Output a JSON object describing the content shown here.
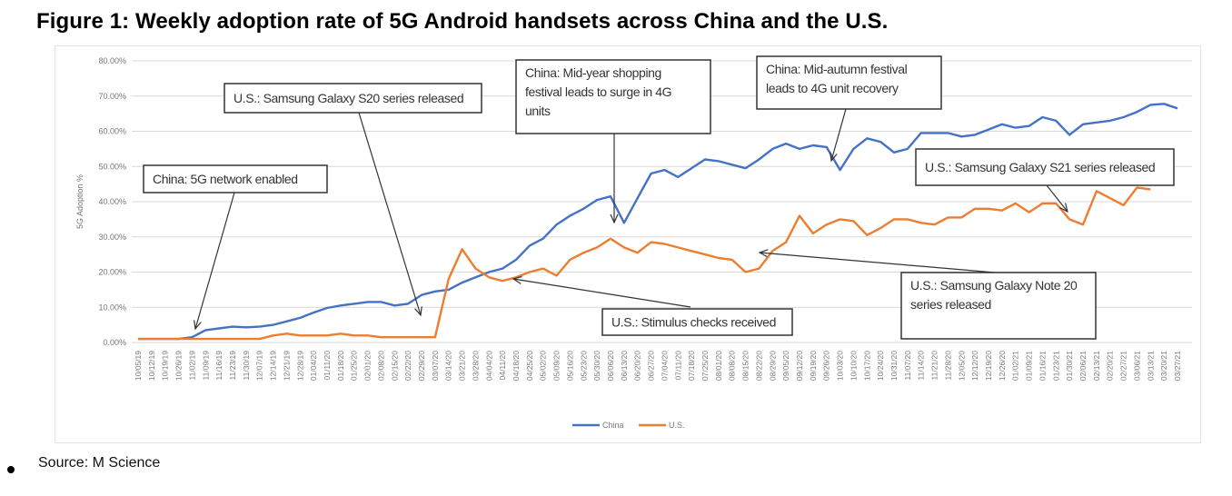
{
  "title": "Figure 1: Weekly  adoption rate of 5G Android handsets across China and the U.S.",
  "source": "Source: M Science",
  "chart_data": {
    "type": "line",
    "title": "Figure 1: Weekly  adoption rate of 5G Android handsets across China and the U.S.",
    "xlabel": "",
    "ylabel": "5G Adoption %",
    "ylim": [
      0,
      80
    ],
    "yticks": [
      "0.00%",
      "10.00%",
      "20.00%",
      "30.00%",
      "40.00%",
      "50.00%",
      "60.00%",
      "70.00%",
      "80.00%"
    ],
    "grid": true,
    "legend_position": "bottom-center",
    "x": [
      "10/05/19",
      "10/12/19",
      "10/19/19",
      "10/26/19",
      "11/02/19",
      "11/09/19",
      "11/16/19",
      "11/23/19",
      "11/30/19",
      "12/07/19",
      "12/14/19",
      "12/21/19",
      "12/28/19",
      "01/04/20",
      "01/11/20",
      "01/18/20",
      "01/25/20",
      "02/01/20",
      "02/08/20",
      "02/15/20",
      "02/22/20",
      "02/29/20",
      "03/07/20",
      "03/14/20",
      "03/21/20",
      "03/28/20",
      "04/04/20",
      "04/11/20",
      "04/18/20",
      "04/25/20",
      "05/02/20",
      "05/09/20",
      "05/16/20",
      "05/23/20",
      "05/30/20",
      "06/06/20",
      "06/13/20",
      "06/20/20",
      "06/27/20",
      "07/04/20",
      "07/11/20",
      "07/18/20",
      "07/25/20",
      "08/01/20",
      "08/08/20",
      "08/15/20",
      "08/22/20",
      "08/29/20",
      "09/05/20",
      "09/12/20",
      "09/19/20",
      "09/26/20",
      "10/03/20",
      "10/10/20",
      "10/17/20",
      "10/24/20",
      "10/31/20",
      "11/07/20",
      "11/14/20",
      "11/21/20",
      "11/28/20",
      "12/05/20",
      "12/12/20",
      "12/19/20",
      "12/26/20",
      "01/02/21",
      "01/09/21",
      "01/16/21",
      "01/23/21",
      "01/30/21",
      "02/06/21",
      "02/13/21",
      "02/20/21",
      "02/27/21",
      "03/06/21",
      "03/13/21",
      "03/20/21",
      "03/27/21"
    ],
    "series": [
      {
        "name": "China",
        "color": "#4472c4",
        "values": [
          1,
          1,
          1,
          1,
          1.5,
          3.5,
          4,
          4.5,
          4.3,
          4.5,
          5,
          6,
          7,
          8.5,
          9.8,
          10.5,
          11,
          11.5,
          11.5,
          10.5,
          11,
          13.5,
          14.5,
          15,
          17,
          18.5,
          20,
          21,
          23.5,
          27.5,
          29.5,
          33.5,
          36,
          38,
          40.5,
          41.5,
          34,
          41,
          48,
          49,
          47,
          49.5,
          52,
          51.5,
          50.5,
          49.5,
          52,
          55,
          56.5,
          55,
          56,
          55.5,
          49,
          55,
          58,
          57,
          54,
          55,
          59.5,
          59.5,
          59.5,
          58.5,
          59,
          60.5,
          62,
          61,
          61.5,
          64,
          63,
          59,
          62,
          62.5,
          63,
          64,
          65.5,
          67.5,
          67.8,
          66.5
        ]
      },
      {
        "name": "U.S.",
        "color": "#ed7d31",
        "values": [
          1,
          1,
          1,
          1,
          1,
          1,
          1,
          1,
          1,
          1,
          2,
          2.5,
          2,
          2,
          2,
          2.5,
          2,
          2,
          1.5,
          1.5,
          1.5,
          1.5,
          1.5,
          18,
          26.5,
          21,
          18.5,
          17.5,
          18.5,
          20,
          21,
          19,
          23.5,
          25.5,
          27,
          29.5,
          27,
          25.5,
          28.5,
          28,
          27,
          26,
          25,
          24,
          23.5,
          20,
          21,
          26,
          28.5,
          36,
          31,
          33.5,
          35,
          34.5,
          30.5,
          32.5,
          35,
          35,
          34,
          33.5,
          35.5,
          35.5,
          38,
          38,
          37.5,
          39.5,
          37,
          39.5,
          39.5,
          35,
          33.5,
          43,
          41,
          39,
          44,
          43.5,
          null,
          null
        ]
      }
    ],
    "annotations": [
      {
        "text": [
          "China: 5G network enabled"
        ],
        "target_date": "11/02/19",
        "series": "China"
      },
      {
        "text": [
          "U.S.: Samsung Galaxy S20 series released"
        ],
        "target_date": "02/29/20",
        "series": "U.S."
      },
      {
        "text": [
          "China: Mid-year shopping",
          "festival leads to surge in 4G",
          "units"
        ],
        "target_date": "06/13/20",
        "series": "China"
      },
      {
        "text": [
          "China: Mid-autumn festival",
          "leads to 4G unit recovery"
        ],
        "target_date": "10/03/20",
        "series": "China"
      },
      {
        "text": [
          "U.S.: Samsung Galaxy S21 series released"
        ],
        "target_date": "01/30/21",
        "series": "U.S."
      },
      {
        "text": [
          "U.S.: Samsung Galaxy Note 20",
          "series released"
        ],
        "target_date": "08/22/20",
        "series": "U.S."
      },
      {
        "text": [
          "U.S.: Stimulus checks received"
        ],
        "target_date": "04/18/20",
        "series": "U.S."
      }
    ]
  }
}
